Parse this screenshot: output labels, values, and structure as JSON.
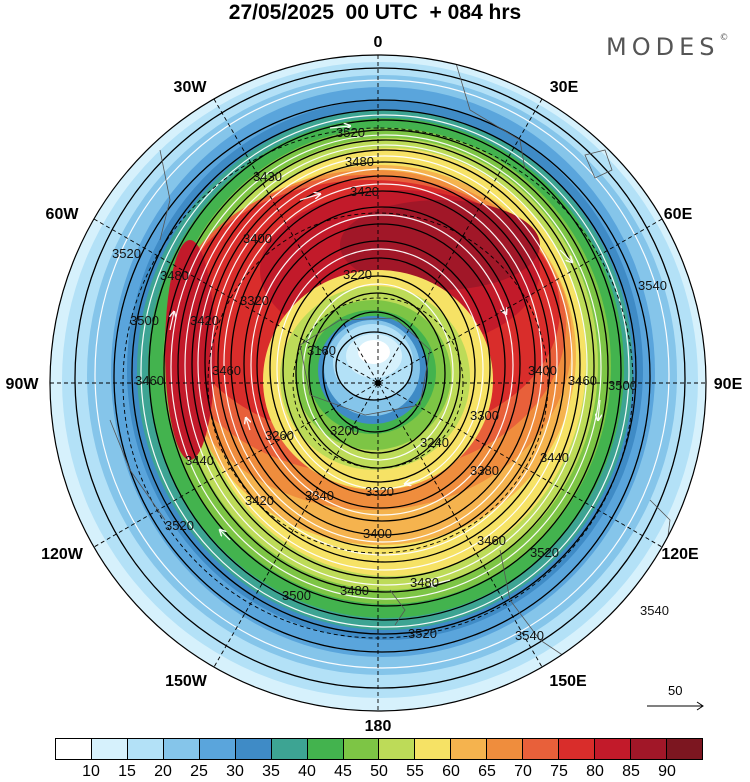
{
  "title": "27/05/2025  00 UTC  + 084 hrs",
  "brand": "MODES",
  "brand_mark": "©",
  "longitude_labels": {
    "n": "0",
    "nne": "30E",
    "ne": "60E",
    "e": "90E",
    "se": "120E",
    "sse": "150E",
    "s": "180",
    "ssw": "150W",
    "sw": "120W",
    "w": "90W",
    "nw": "60W",
    "nnw": "30W"
  },
  "contour_labels": [
    "3520",
    "3480",
    "3430",
    "3420",
    "3400",
    "3320",
    "3220",
    "3160",
    "3480",
    "3500",
    "3460",
    "3520",
    "3540",
    "3400",
    "3460",
    "3500",
    "3300",
    "3440",
    "3380",
    "3260",
    "3200",
    "3240",
    "3340",
    "3320",
    "3420",
    "3400",
    "3460",
    "3520",
    "3540",
    "3480",
    "3480",
    "3500",
    "3520",
    "3540",
    "3520",
    "3440",
    "3460",
    "3420"
  ],
  "colorbar": {
    "colors": [
      "#ffffff",
      "#d6f1fc",
      "#b3e1f7",
      "#85c5ea",
      "#5aa5dc",
      "#3f8bc6",
      "#3da493",
      "#43b34e",
      "#7dc545",
      "#bddb58",
      "#f6e265",
      "#f5b34e",
      "#ef8d3d",
      "#e8603a",
      "#d92d2b",
      "#c21a2a",
      "#a11728",
      "#7c1620"
    ],
    "ticks": [
      "10",
      "15",
      "20",
      "25",
      "30",
      "35",
      "40",
      "45",
      "50",
      "55",
      "60",
      "65",
      "70",
      "75",
      "80",
      "85",
      "90"
    ]
  },
  "vector_reference": "50",
  "icons": [
    "wind-arrow-icon"
  ]
}
